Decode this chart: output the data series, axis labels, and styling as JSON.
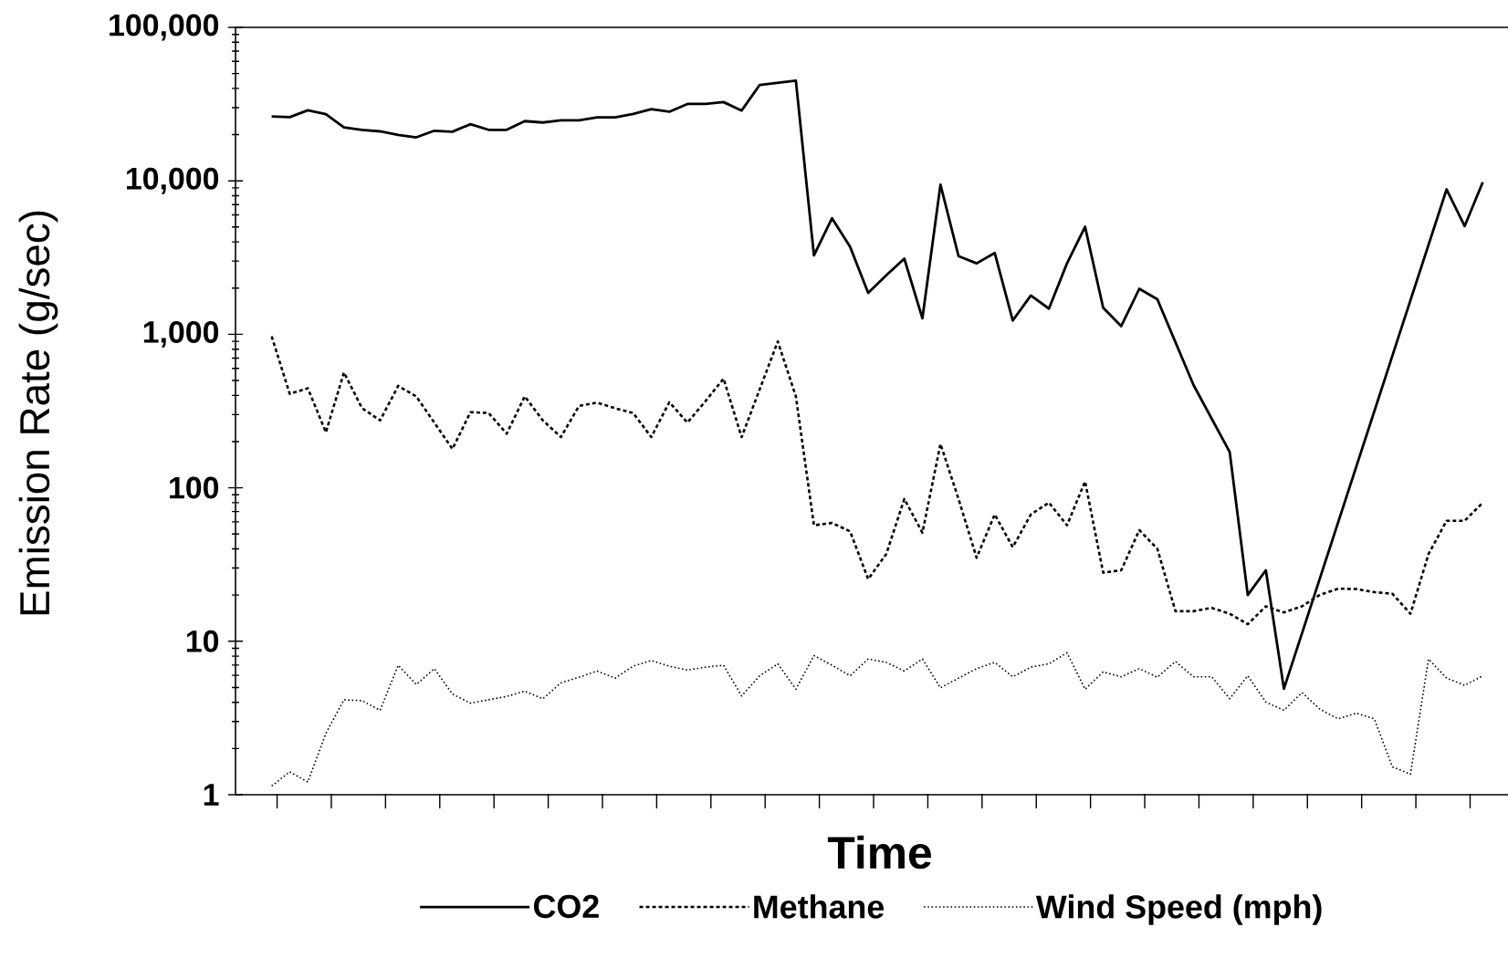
{
  "chart_data": {
    "type": "line",
    "xlabel": "Time",
    "ylabel": "Emission Rate (g/sec)",
    "log": "y",
    "legend": "bottom",
    "categories": [
      null,
      null,
      null,
      null,
      null,
      null,
      null,
      null,
      null,
      null,
      null,
      null,
      null,
      null,
      null,
      null,
      null,
      null,
      null,
      null,
      null,
      null,
      null,
      null,
      null,
      null,
      null,
      null,
      null,
      null,
      null,
      null,
      null,
      null,
      null,
      null,
      null,
      null,
      null,
      null,
      null,
      null,
      null,
      null,
      null,
      null,
      null,
      null,
      null,
      null,
      null,
      null,
      null,
      null,
      null,
      null,
      null,
      null,
      null,
      null,
      null,
      null,
      null,
      null,
      null,
      null,
      null,
      null
    ],
    "ylim": [
      1,
      100000
    ],
    "yticks": [
      {
        "value": 1,
        "label": "1"
      },
      {
        "value": 10,
        "label": "10"
      },
      {
        "value": 100,
        "label": "100"
      },
      {
        "value": 1000,
        "label": "1,000"
      },
      {
        "value": 10000,
        "label": "10,000"
      },
      {
        "value": 100000,
        "label": "100,000"
      }
    ],
    "series": [
      {
        "name": "CO2",
        "color": "#000000",
        "line_style": "solid",
        "values": [
          26300,
          26000,
          28800,
          27200,
          22300,
          21500,
          21000,
          19900,
          19200,
          21200,
          20900,
          23400,
          21500,
          21500,
          24500,
          24000,
          24800,
          24800,
          25900,
          25900,
          27300,
          29300,
          28200,
          31700,
          31700,
          32600,
          28700,
          42200,
          null,
          45000,
          3270,
          5710,
          3720,
          1860,
          2420,
          3110,
          1270,
          9440,
          3230,
          2900,
          3390,
          1230,
          1790,
          1470,
          2900,
          5020,
          1490,
          1130,
          1980,
          1690,
          null,
          467,
          null,
          171,
          20,
          29,
          4.9,
          null,
          null,
          null,
          null,
          null,
          null,
          null,
          null,
          8800,
          5070,
          9800
        ]
      },
      {
        "name": "Methane",
        "color": "#000000",
        "line_style": "dashed",
        "values": [
          970,
          409,
          445,
          230,
          564,
          330,
          275,
          461,
          394,
          266,
          179,
          311,
          307,
          225,
          394,
          275,
          214,
          341,
          359,
          330,
          307,
          214,
          361,
          266,
          367,
          514,
          214,
          null,
          898,
          394,
          57,
          59,
          52,
          25.4,
          37,
          84.5,
          51,
          193,
          84.5,
          35,
          67,
          41,
          67,
          80,
          57,
          110,
          28,
          29,
          53,
          40,
          15.7,
          15.7,
          16.5,
          15.1,
          12.9,
          16.9,
          15.4,
          16.9,
          20.1,
          22,
          21.9,
          20.9,
          20.4,
          15.1,
          37,
          61,
          61,
          80
        ]
      },
      {
        "name": "Wind Speed (mph)",
        "color": "#000000",
        "line_style": "dotted",
        "values": [
          1.14,
          1.41,
          1.21,
          2.51,
          4.16,
          4.1,
          3.55,
          6.98,
          5.23,
          6.63,
          4.53,
          3.95,
          4.16,
          4.37,
          4.73,
          4.22,
          5.35,
          5.83,
          6.4,
          5.75,
          6.88,
          7.5,
          6.88,
          6.49,
          6.78,
          6.98,
          4.4,
          5.96,
          7.13,
          4.87,
          8.06,
          6.98,
          5.96,
          7.66,
          7.29,
          6.4,
          7.66,
          4.97,
          5.75,
          6.63,
          7.29,
          5.87,
          6.78,
          7.13,
          8.41,
          4.87,
          6.31,
          5.87,
          6.63,
          5.83,
          7.39,
          5.87,
          5.87,
          4.22,
          5.96,
          4.01,
          3.55,
          4.63,
          3.6,
          3.12,
          3.4,
          3.12,
          1.52,
          1.36,
          7.66,
          5.75,
          5.16,
          5.96
        ]
      }
    ]
  }
}
